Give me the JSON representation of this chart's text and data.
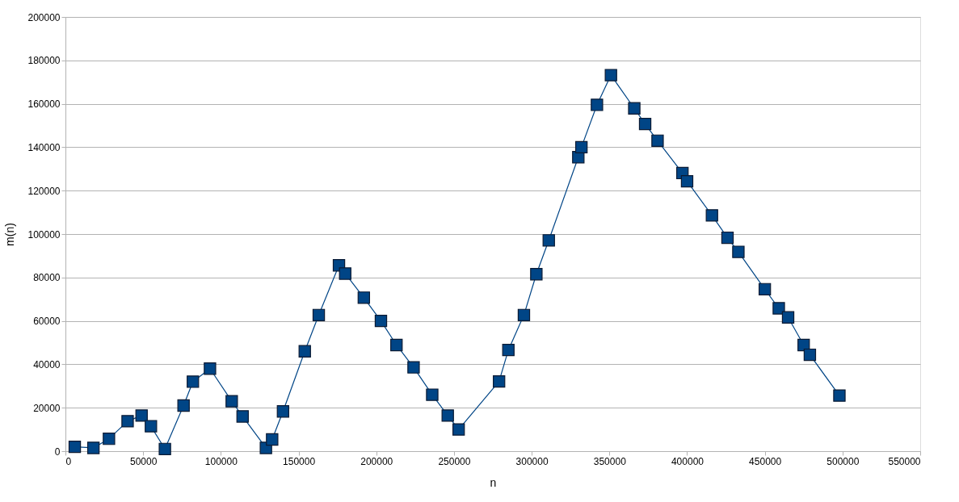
{
  "chart_data": {
    "type": "line",
    "xlabel": "n",
    "ylabel": "m(n)",
    "marker": "square",
    "grid": "y",
    "legend": false,
    "xlim": [
      0,
      550000
    ],
    "xticks": [
      0,
      50000,
      100000,
      150000,
      200000,
      250000,
      300000,
      350000,
      400000,
      450000,
      500000,
      550000
    ],
    "ylim": [
      0,
      200000
    ],
    "yticks": [
      0,
      20000,
      40000,
      60000,
      80000,
      100000,
      120000,
      140000,
      160000,
      180000,
      200000
    ],
    "series": [
      {
        "color": "#004586",
        "x": [
          6000,
          18000,
          28000,
          40000,
          49000,
          55000,
          64000,
          76000,
          82000,
          93000,
          107000,
          114000,
          129000,
          133000,
          140000,
          154000,
          163000,
          176000,
          180000,
          192000,
          203000,
          213000,
          224000,
          236000,
          246000,
          253000,
          279000,
          285000,
          295000,
          303000,
          311000,
          330000,
          332000,
          342000,
          351000,
          366000,
          373000,
          381000,
          397000,
          400000,
          416000,
          426000,
          433000,
          450000,
          459000,
          465000,
          475000,
          479000,
          498000
        ],
        "values": [
          2000,
          1500,
          5700,
          13800,
          16400,
          11500,
          1000,
          21000,
          32000,
          38000,
          23000,
          16000,
          1500,
          5400,
          18300,
          46000,
          62700,
          85600,
          81800,
          70700,
          60000,
          48900,
          38600,
          26000,
          16400,
          10000,
          32100,
          46600,
          62700,
          81500,
          97100,
          135400,
          140000,
          159500,
          173200,
          157900,
          150700,
          143000,
          128100,
          124300,
          108600,
          98300,
          91800,
          74600,
          65800,
          61600,
          48900,
          44400,
          25600
        ]
      }
    ]
  }
}
